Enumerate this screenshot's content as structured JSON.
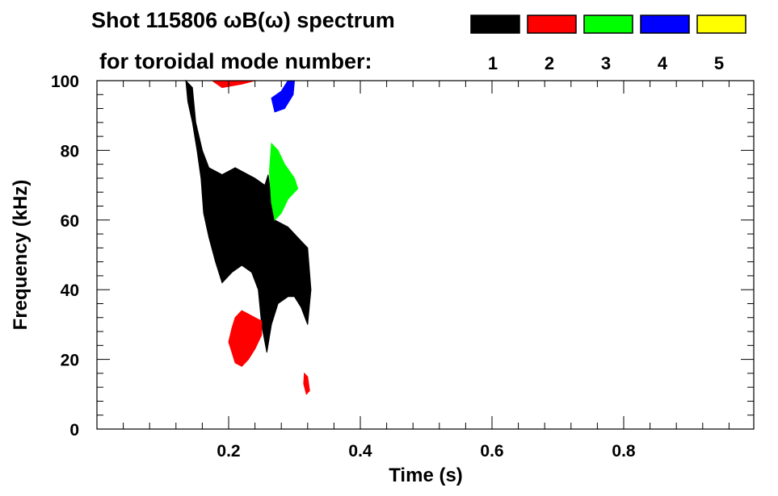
{
  "title_line1": "Shot 115806 ωB(ω) spectrum",
  "title_line2": "for toroidal mode number:",
  "chart_data": {
    "type": "heatmap",
    "title": "Shot 115806 ωB(ω) spectrum",
    "xlabel": "Time (s)",
    "ylabel": "Frequency (kHz)",
    "xlim": [
      0,
      1.0
    ],
    "ylim": [
      0,
      100
    ],
    "x_ticks": [
      0.2,
      0.4,
      0.6,
      0.8
    ],
    "x_tick_labels": [
      "0.2",
      "0.4",
      "0.6",
      "0.8"
    ],
    "y_ticks": [
      0,
      20,
      40,
      60,
      80,
      100
    ],
    "y_tick_labels": [
      "0",
      "20",
      "40",
      "60",
      "80",
      "100"
    ],
    "grid": false,
    "legend_placement": "top-right",
    "legend": [
      {
        "label": "1",
        "color": "#000000"
      },
      {
        "label": "2",
        "color": "#ff0000"
      },
      {
        "label": "3",
        "color": "#00ff00"
      },
      {
        "label": "4",
        "color": "#0000ff"
      },
      {
        "label": "5",
        "color": "#ffff00"
      }
    ],
    "regions": [
      {
        "mode": "1",
        "points": [
          [
            0.135,
            100
          ],
          [
            0.145,
            98
          ],
          [
            0.15,
            88
          ],
          [
            0.16,
            80
          ],
          [
            0.17,
            75
          ],
          [
            0.19,
            73
          ],
          [
            0.21,
            75
          ],
          [
            0.24,
            72
          ],
          [
            0.255,
            70
          ],
          [
            0.26,
            73
          ],
          [
            0.265,
            66
          ],
          [
            0.27,
            60
          ],
          [
            0.29,
            58
          ],
          [
            0.31,
            54
          ],
          [
            0.32,
            52
          ],
          [
            0.325,
            40
          ],
          [
            0.32,
            30
          ],
          [
            0.31,
            35
          ],
          [
            0.3,
            38
          ],
          [
            0.29,
            38
          ],
          [
            0.275,
            36
          ],
          [
            0.265,
            30
          ],
          [
            0.258,
            22
          ],
          [
            0.25,
            30
          ],
          [
            0.245,
            40
          ],
          [
            0.235,
            45
          ],
          [
            0.22,
            47
          ],
          [
            0.205,
            45
          ],
          [
            0.19,
            42
          ],
          [
            0.18,
            48
          ],
          [
            0.17,
            55
          ],
          [
            0.162,
            62
          ],
          [
            0.158,
            72
          ],
          [
            0.152,
            80
          ],
          [
            0.145,
            88
          ],
          [
            0.138,
            94
          ]
        ]
      },
      {
        "mode": "1",
        "points": [
          [
            0.235,
            64
          ],
          [
            0.26,
            66
          ],
          [
            0.262,
            58
          ],
          [
            0.24,
            56
          ]
        ]
      },
      {
        "mode": "2",
        "points": [
          [
            0.2,
            25
          ],
          [
            0.205,
            22
          ],
          [
            0.21,
            19
          ],
          [
            0.22,
            18
          ],
          [
            0.23,
            20
          ],
          [
            0.24,
            23
          ],
          [
            0.25,
            27
          ],
          [
            0.25,
            31
          ],
          [
            0.24,
            32
          ],
          [
            0.23,
            33
          ],
          [
            0.22,
            34
          ],
          [
            0.21,
            32
          ],
          [
            0.205,
            29
          ]
        ]
      },
      {
        "mode": "2",
        "points": [
          [
            0.315,
            16
          ],
          [
            0.32,
            15
          ],
          [
            0.323,
            11
          ],
          [
            0.318,
            10
          ],
          [
            0.314,
            13
          ]
        ]
      },
      {
        "mode": "2",
        "points": [
          [
            0.175,
            100
          ],
          [
            0.19,
            98
          ],
          [
            0.22,
            99
          ],
          [
            0.24,
            100
          ]
        ]
      },
      {
        "mode": "3",
        "points": [
          [
            0.265,
            82
          ],
          [
            0.275,
            80
          ],
          [
            0.285,
            76
          ],
          [
            0.3,
            72
          ],
          [
            0.305,
            69
          ],
          [
            0.29,
            66
          ],
          [
            0.28,
            62
          ],
          [
            0.27,
            60
          ],
          [
            0.265,
            65
          ],
          [
            0.262,
            74
          ]
        ]
      },
      {
        "mode": "4",
        "points": [
          [
            0.265,
            95
          ],
          [
            0.28,
            97
          ],
          [
            0.29,
            100
          ],
          [
            0.3,
            100
          ],
          [
            0.298,
            96
          ],
          [
            0.285,
            92
          ],
          [
            0.27,
            91
          ]
        ]
      }
    ]
  }
}
